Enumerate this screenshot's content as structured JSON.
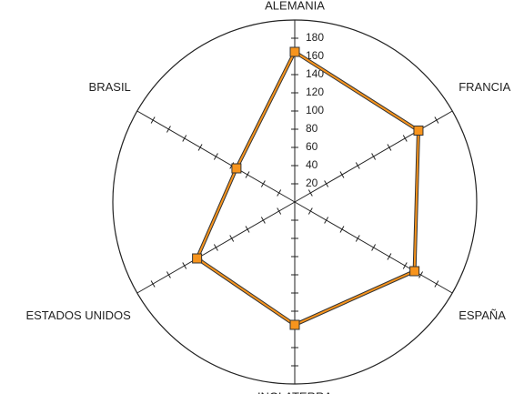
{
  "chart_data": {
    "type": "radar",
    "categories": [
      "ALEMANIA",
      "FRANCIA",
      "ESPAÑA",
      "INGLATERRA",
      "ESTADOS UNIDOS",
      "BRASIL"
    ],
    "values": [
      165,
      157,
      152,
      135,
      124,
      74
    ],
    "color": "#f7941d",
    "ylim": [
      0,
      200
    ],
    "yticks": [
      20,
      40,
      60,
      80,
      100,
      120,
      140,
      160,
      180
    ]
  }
}
